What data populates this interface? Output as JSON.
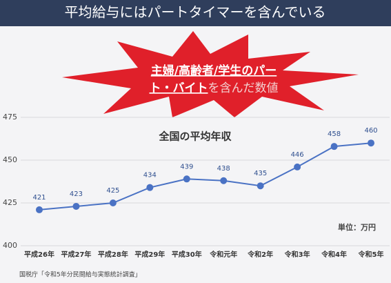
{
  "header": {
    "title": "平均給与にはパートタイマーを含んでいる"
  },
  "callout": {
    "line1": "主婦/高齢者/学生のパー",
    "line2a": "ト・バイト",
    "line2b": "を含んだ数値"
  },
  "chart_data": {
    "type": "line",
    "title": "全国の平均年収",
    "categories": [
      "平成26年",
      "平成27年",
      "平成28年",
      "平成29年",
      "平成30年",
      "令和元年",
      "令和2年",
      "令和3年",
      "令和4年",
      "令和5年"
    ],
    "values": [
      421,
      423,
      425,
      434,
      439,
      438,
      435,
      446,
      458,
      460
    ],
    "color": "#4a72c4",
    "ylim": [
      400,
      475
    ],
    "yticks": [
      400,
      425,
      450,
      475
    ],
    "grid": true,
    "unit_label": "単位：万円"
  },
  "source": "国税庁「令和5年分民間給与実態統計調査」"
}
